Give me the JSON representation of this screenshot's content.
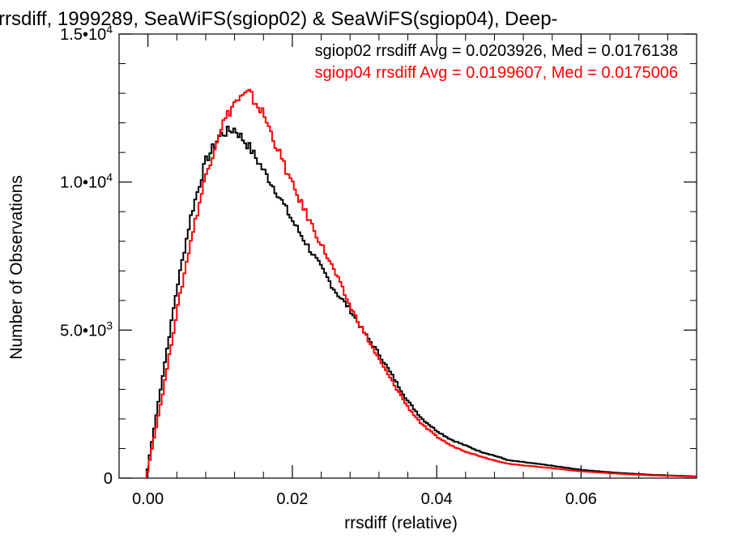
{
  "chart_data": {
    "type": "line",
    "step": true,
    "title": "rrsdiff, 1999289, SeaWiFS(sgiop02) & SeaWiFS(sgiop04), Deep-",
    "xlabel": "rrsdiff (relative)",
    "ylabel": "Number of Observations",
    "xlim": [
      -0.004,
      0.076
    ],
    "ylim": [
      0,
      15000
    ],
    "x_ticks": [
      {
        "value": 0.0,
        "label": "0.00"
      },
      {
        "value": 0.02,
        "label": "0.02"
      },
      {
        "value": 0.04,
        "label": "0.04"
      },
      {
        "value": 0.06,
        "label": "0.06"
      }
    ],
    "y_ticks": [
      {
        "value": 0,
        "label": "0",
        "sup": ""
      },
      {
        "value": 5000,
        "label": "5.0•10",
        "sup": "3"
      },
      {
        "value": 10000,
        "label": "1.0•10",
        "sup": "4"
      },
      {
        "value": 15000,
        "label": "1.5•10",
        "sup": "4"
      }
    ],
    "grid": false,
    "legend_placement": "top-right",
    "series": [
      {
        "name": "sgiop02",
        "color": "#000000",
        "legend_text": "sgiop02 rrsdiff Avg = 0.0203926, Med = 0.0176138",
        "x": [
          -0.0002,
          0.0,
          0.002,
          0.004,
          0.006,
          0.008,
          0.01,
          0.012,
          0.014,
          0.016,
          0.018,
          0.02,
          0.022,
          0.024,
          0.026,
          0.028,
          0.03,
          0.032,
          0.034,
          0.036,
          0.038,
          0.04,
          0.042,
          0.044,
          0.046,
          0.048,
          0.05,
          0.055,
          0.06,
          0.065,
          0.07,
          0.076
        ],
        "y": [
          0,
          400,
          3400,
          6400,
          8900,
          10700,
          11600,
          11800,
          11200,
          10400,
          9600,
          8700,
          7900,
          7100,
          6300,
          5700,
          4900,
          4200,
          3400,
          2600,
          2000,
          1600,
          1300,
          1100,
          900,
          760,
          600,
          450,
          280,
          180,
          110,
          60
        ]
      },
      {
        "name": "sgiop04",
        "color": "#ff0000",
        "legend_text": "sgiop04 rrsdiff Avg = 0.0199607, Med = 0.0175006",
        "x": [
          -0.0002,
          0.0,
          0.002,
          0.004,
          0.006,
          0.008,
          0.01,
          0.012,
          0.014,
          0.016,
          0.018,
          0.02,
          0.022,
          0.024,
          0.026,
          0.028,
          0.03,
          0.032,
          0.034,
          0.036,
          0.038,
          0.04,
          0.042,
          0.044,
          0.046,
          0.048,
          0.05,
          0.055,
          0.06,
          0.065,
          0.07,
          0.076
        ],
        "y": [
          0,
          300,
          2800,
          5600,
          8100,
          10200,
          11800,
          12700,
          13000,
          12300,
          11100,
          9900,
          8900,
          7900,
          6900,
          5800,
          4900,
          4000,
          3200,
          2400,
          1800,
          1400,
          1100,
          900,
          740,
          600,
          480,
          360,
          230,
          150,
          90,
          50
        ]
      }
    ]
  }
}
